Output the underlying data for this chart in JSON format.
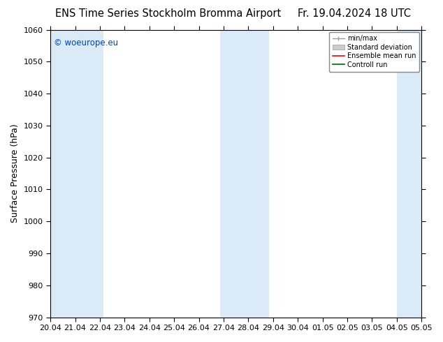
{
  "title_left": "ENS Time Series Stockholm Bromma Airport",
  "title_right": "Fr. 19.04.2024 18 UTC",
  "ylabel": "Surface Pressure (hPa)",
  "ylim": [
    970,
    1060
  ],
  "yticks": [
    970,
    980,
    990,
    1000,
    1010,
    1020,
    1030,
    1040,
    1050,
    1060
  ],
  "xtick_labels": [
    "20.04",
    "21.04",
    "22.04",
    "23.04",
    "24.04",
    "25.04",
    "26.04",
    "27.04",
    "28.04",
    "29.04",
    "30.04",
    "01.05",
    "02.05",
    "03.05",
    "04.05",
    "05.05"
  ],
  "band_color": "#daeaf7",
  "watermark": "© woeurope.eu",
  "watermark_color": "#0044bb",
  "legend_entries": [
    {
      "label": "min/max"
    },
    {
      "label": "Standard deviation"
    },
    {
      "label": "Ensemble mean run"
    },
    {
      "label": "Controll run"
    }
  ],
  "bg_color": "#ffffff",
  "spine_color": "#000000",
  "title_fontsize": 10.5,
  "tick_fontsize": 8,
  "label_fontsize": 9
}
